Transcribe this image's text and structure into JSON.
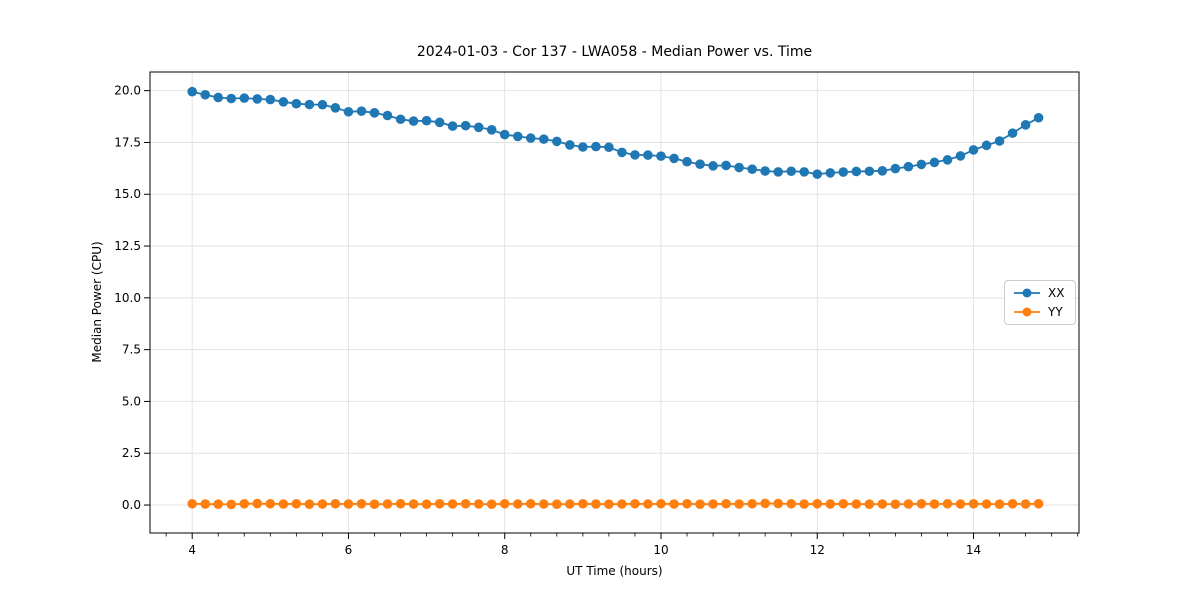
{
  "chart_data": {
    "type": "line",
    "title": "2024-01-03 - Cor 137 - LWA058 - Median Power vs. Time",
    "xlabel": "UT Time (hours)",
    "ylabel": "Median Power (CPU)",
    "xlim": [
      3.46,
      15.35
    ],
    "ylim": [
      -1.35,
      20.9
    ],
    "xticks": [
      4,
      6,
      8,
      10,
      12,
      14
    ],
    "yticks": [
      0.0,
      2.5,
      5.0,
      7.5,
      10.0,
      12.5,
      15.0,
      17.5,
      20.0
    ],
    "x_minor_step": 0.33333,
    "grid": true,
    "legend_position": "center right",
    "x": [
      4.0,
      4.167,
      4.333,
      4.5,
      4.667,
      4.833,
      5.0,
      5.167,
      5.333,
      5.5,
      5.667,
      5.833,
      6.0,
      6.167,
      6.333,
      6.5,
      6.667,
      6.833,
      7.0,
      7.167,
      7.333,
      7.5,
      7.667,
      7.833,
      8.0,
      8.167,
      8.333,
      8.5,
      8.667,
      8.833,
      9.0,
      9.167,
      9.333,
      9.5,
      9.667,
      9.833,
      10.0,
      10.167,
      10.333,
      10.5,
      10.667,
      10.833,
      11.0,
      11.167,
      11.333,
      11.5,
      11.667,
      11.833,
      12.0,
      12.167,
      12.333,
      12.5,
      12.667,
      12.833,
      13.0,
      13.167,
      13.333,
      13.5,
      13.667,
      13.833,
      14.0,
      14.167,
      14.333,
      14.5,
      14.667,
      14.833
    ],
    "series": [
      {
        "name": "XX",
        "color": "#1f77b4",
        "values": [
          19.95,
          19.8,
          19.67,
          19.62,
          19.64,
          19.6,
          19.57,
          19.46,
          19.37,
          19.33,
          19.32,
          19.17,
          18.98,
          19.01,
          18.93,
          18.8,
          18.62,
          18.53,
          18.55,
          18.47,
          18.29,
          18.31,
          18.23,
          18.11,
          17.88,
          17.79,
          17.71,
          17.66,
          17.55,
          17.38,
          17.28,
          17.3,
          17.27,
          17.02,
          16.9,
          16.89,
          16.84,
          16.73,
          16.57,
          16.45,
          16.37,
          16.39,
          16.29,
          16.21,
          16.12,
          16.08,
          16.11,
          16.08,
          15.97,
          16.03,
          16.07,
          16.1,
          16.11,
          16.13,
          16.24,
          16.33,
          16.44,
          16.54,
          16.66,
          16.85,
          17.14,
          17.36,
          17.57,
          17.95,
          18.35,
          18.69
        ]
      },
      {
        "name": "YY",
        "color": "#ff7f0e",
        "values": [
          0.06,
          0.05,
          0.04,
          0.03,
          0.06,
          0.07,
          0.06,
          0.05,
          0.06,
          0.04,
          0.05,
          0.06,
          0.05,
          0.06,
          0.04,
          0.05,
          0.06,
          0.05,
          0.04,
          0.06,
          0.05,
          0.06,
          0.05,
          0.04,
          0.06,
          0.05,
          0.06,
          0.05,
          0.04,
          0.05,
          0.06,
          0.05,
          0.04,
          0.05,
          0.06,
          0.05,
          0.06,
          0.05,
          0.06,
          0.04,
          0.05,
          0.06,
          0.05,
          0.06,
          0.08,
          0.07,
          0.06,
          0.05,
          0.06,
          0.05,
          0.06,
          0.05,
          0.04,
          0.05,
          0.04,
          0.05,
          0.06,
          0.05,
          0.06,
          0.05,
          0.06,
          0.05,
          0.04,
          0.06,
          0.05,
          0.06
        ]
      }
    ],
    "style": {
      "grid_color": "#e3e3e3",
      "spine_color": "#000000",
      "tick_label_color": "#000000"
    }
  }
}
